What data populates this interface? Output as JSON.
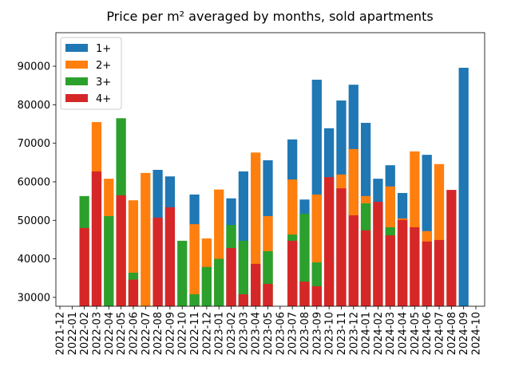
{
  "chart_data": {
    "type": "bar",
    "title": "Price per m² averaged by months, sold apartments",
    "categories": [
      "2021-12",
      "2022-01",
      "2022-02",
      "2022-03",
      "2022-04",
      "2022-05",
      "2022-06",
      "2022-07",
      "2022-08",
      "2022-09",
      "2022-10",
      "2022-11",
      "2022-12",
      "2023-01",
      "2023-02",
      "2023-03",
      "2023-04",
      "2023-05",
      "2023-06",
      "2023-07",
      "2023-08",
      "2023-09",
      "2023-10",
      "2023-11",
      "2023-12",
      "2024-01",
      "2024-02",
      "2024-03",
      "2024-04",
      "2024-05",
      "2024-06",
      "2024-07",
      "2024-08",
      "2024-09",
      "2024-10"
    ],
    "series": [
      {
        "name": "1+",
        "color": "#1f77b4",
        "values": [
          null,
          null,
          null,
          null,
          null,
          null,
          null,
          null,
          63100,
          61400,
          null,
          56700,
          null,
          null,
          55700,
          62700,
          null,
          65600,
          null,
          71000,
          55400,
          86500,
          73900,
          81100,
          85200,
          75300,
          60800,
          64300,
          57100,
          null,
          67000,
          null,
          null,
          89600,
          null
        ]
      },
      {
        "name": "2+",
        "color": "#ff7f0e",
        "values": [
          null,
          null,
          null,
          75500,
          60800,
          null,
          55200,
          62300,
          null,
          null,
          null,
          49000,
          45300,
          58000,
          null,
          null,
          67600,
          51100,
          null,
          60600,
          null,
          56700,
          null,
          61900,
          68500,
          56300,
          null,
          58800,
          50500,
          67900,
          47200,
          64600,
          null,
          null,
          null
        ]
      },
      {
        "name": "3+",
        "color": "#2ca02c",
        "values": [
          null,
          null,
          56300,
          null,
          51100,
          76500,
          36400,
          null,
          null,
          null,
          44700,
          30800,
          37900,
          40000,
          48800,
          44700,
          null,
          42000,
          null,
          46300,
          51700,
          39100,
          null,
          null,
          null,
          54400,
          null,
          48200,
          null,
          null,
          null,
          null,
          null,
          null,
          null
        ]
      },
      {
        "name": "4+",
        "color": "#d62728",
        "values": [
          null,
          null,
          48000,
          62700,
          null,
          56500,
          34600,
          null,
          50700,
          53400,
          null,
          null,
          null,
          null,
          42800,
          30800,
          38700,
          33500,
          null,
          44700,
          34100,
          32900,
          61200,
          58300,
          51300,
          47400,
          54800,
          46100,
          50100,
          48200,
          44500,
          44900,
          57900,
          null,
          null
        ]
      }
    ],
    "ylim": [
      27700,
      98700
    ],
    "yticks": [
      30000,
      40000,
      50000,
      60000,
      70000,
      80000,
      90000
    ],
    "legend": "upper left"
  }
}
